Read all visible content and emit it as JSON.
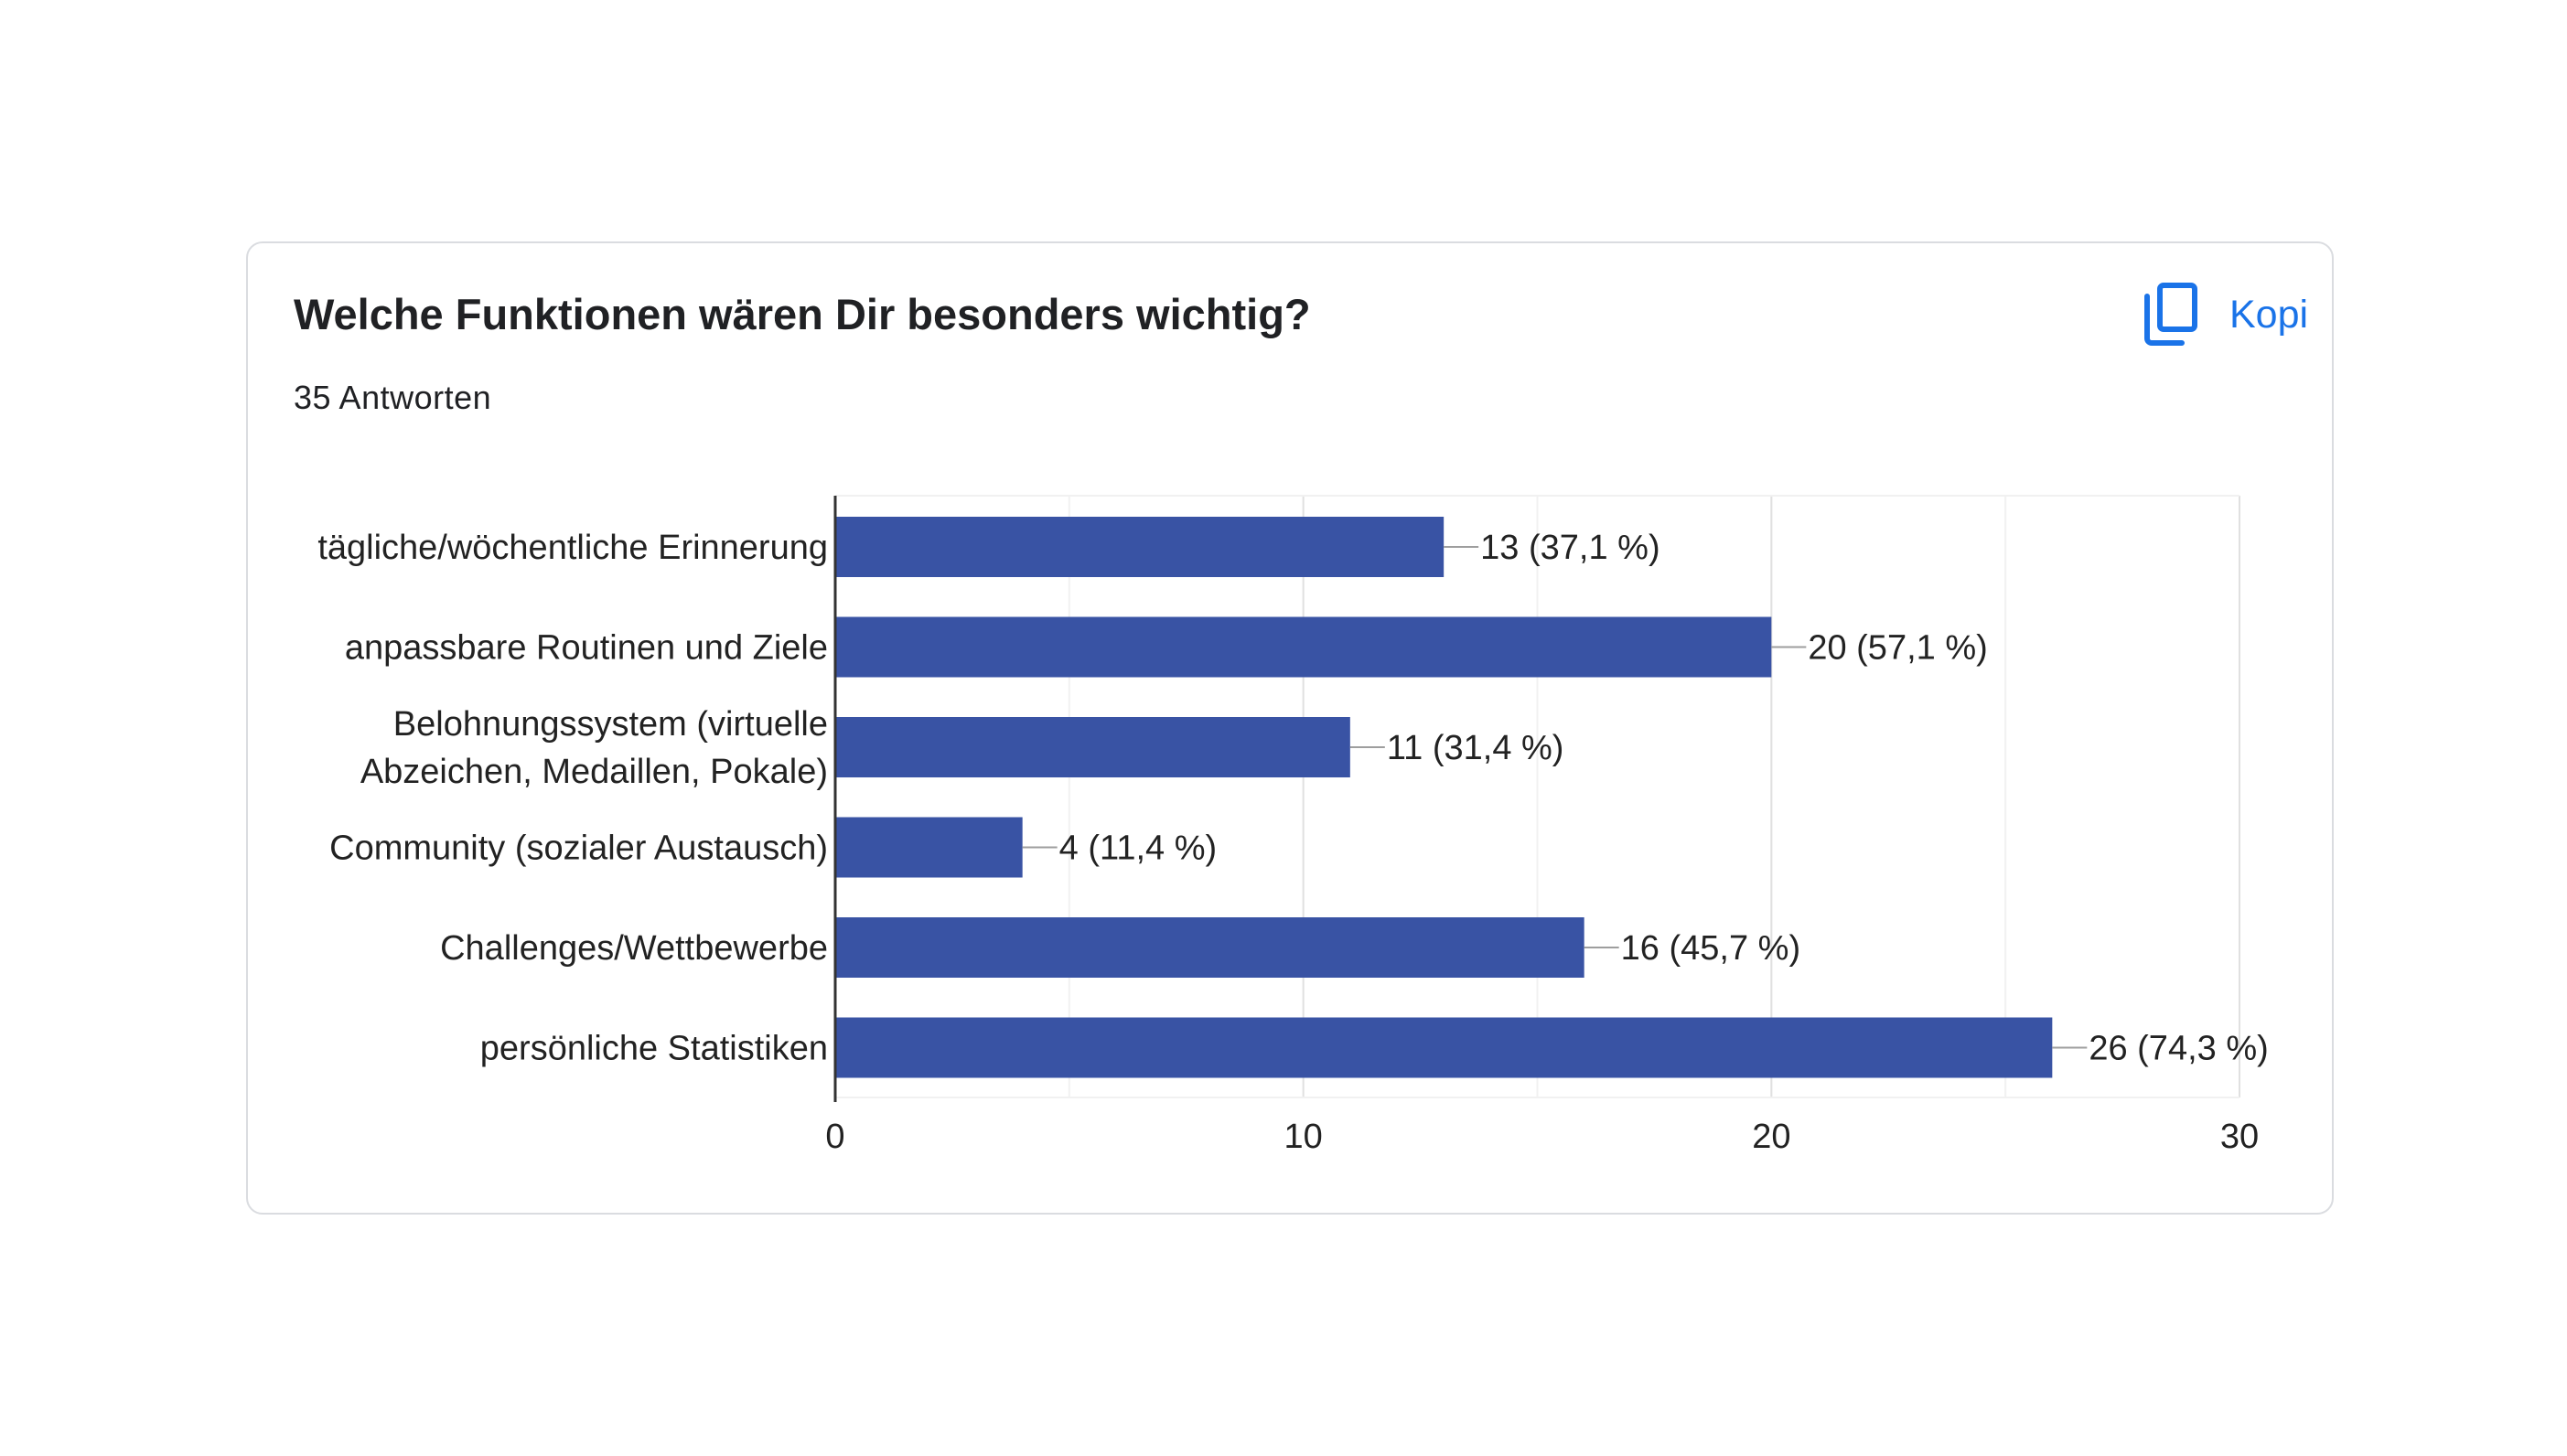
{
  "card": {
    "title": "Welche Funktionen wären Dir besonders wichtig?",
    "subtitle": "35 Antworten",
    "copy_label": "Kopi",
    "copy_icon": "copy-icon"
  },
  "colors": {
    "bar": "#3953a4",
    "accent": "#1a73e8"
  },
  "chart_data": {
    "type": "bar",
    "orientation": "horizontal",
    "categories": [
      [
        "tägliche/wöchentliche Erinnerung"
      ],
      [
        "anpassbare Routinen und Ziele"
      ],
      [
        "Belohnungssystem (virtuelle",
        "Abzeichen, Medaillen, Pokale)"
      ],
      [
        "Community (sozialer Austausch)"
      ],
      [
        "Challenges/Wettbewerbe"
      ],
      [
        "persönliche Statistiken"
      ]
    ],
    "values": [
      13,
      20,
      11,
      4,
      16,
      26
    ],
    "value_labels": [
      "13 (37,1 %)",
      "20 (57,1 %)",
      "11 (31,4 %)",
      "4 (11,4 %)",
      "16 (45,7 %)",
      "26 (74,3 %)"
    ],
    "xlim": [
      0,
      30
    ],
    "xticks": [
      0,
      10,
      20,
      30
    ],
    "grid": true
  }
}
